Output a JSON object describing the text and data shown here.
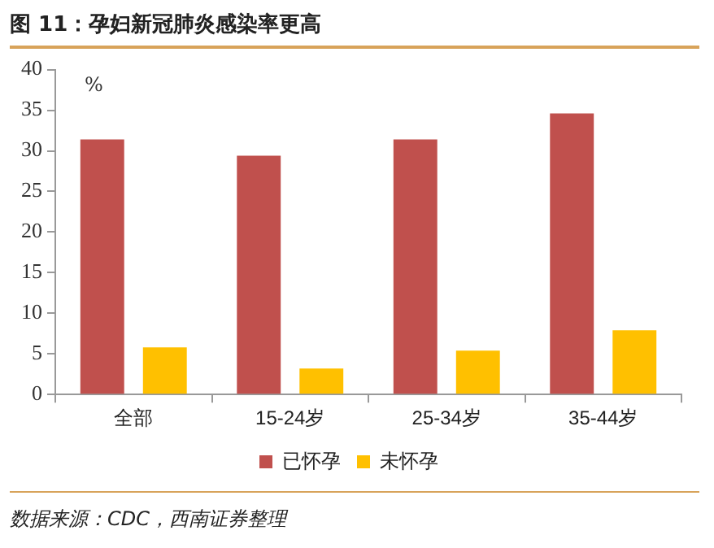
{
  "chart_data": {
    "type": "bar",
    "title": "图 11：孕妇新冠肺炎感染率更高",
    "ylabel": "%",
    "categories": [
      "全部",
      "15-24岁",
      "25-34岁",
      "35-44岁"
    ],
    "series": [
      {
        "name": "已怀孕",
        "color": "#c0504d",
        "values": [
          31.4,
          29.4,
          31.4,
          34.6
        ]
      },
      {
        "name": "未怀孕",
        "color": "#ffc000",
        "values": [
          5.8,
          3.2,
          5.4,
          7.9
        ]
      }
    ],
    "ylim": [
      0,
      40
    ],
    "yticks": [
      0,
      5,
      10,
      15,
      20,
      25,
      30,
      35,
      40
    ],
    "grid": false,
    "legend": "bottom",
    "annotations": [
      "数据来源：CDC，西南证券整理"
    ]
  }
}
